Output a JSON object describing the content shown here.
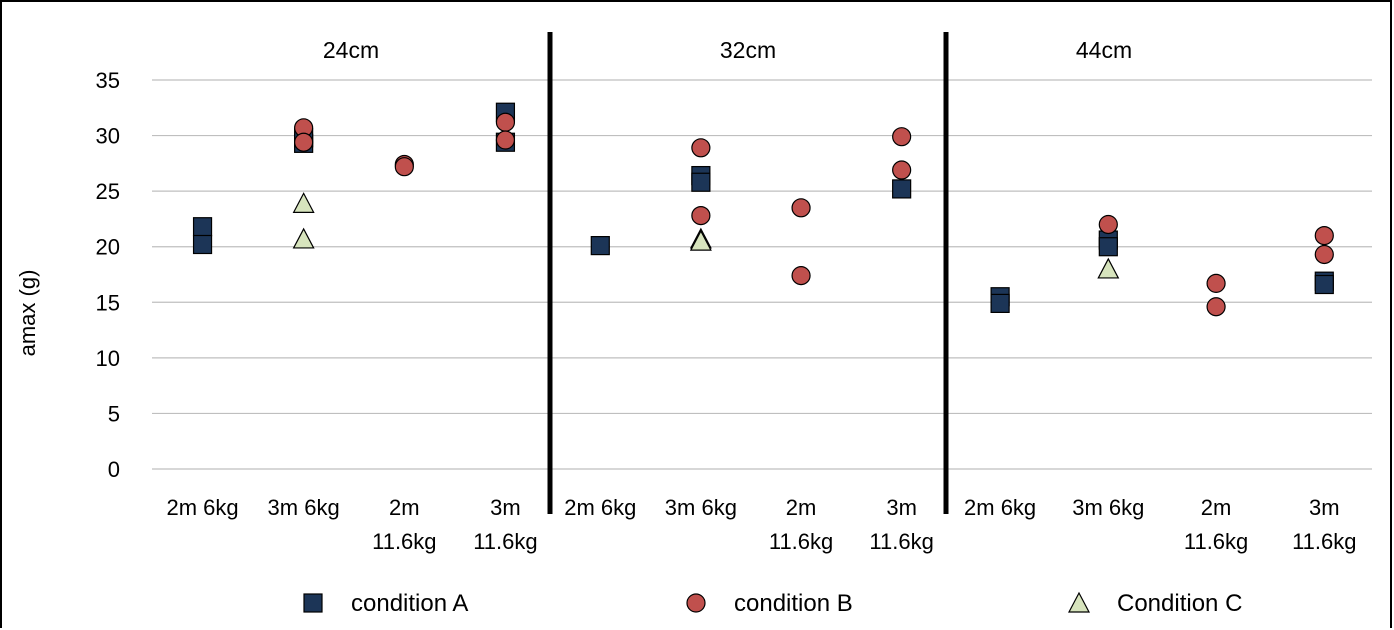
{
  "chart_data": {
    "type": "scatter",
    "ylabel": "amax (g)",
    "ylim": [
      0,
      35
    ],
    "yticks": [
      0,
      5,
      10,
      15,
      20,
      25,
      30,
      35
    ],
    "grid": true,
    "legend_position": "bottom",
    "colors": {
      "condition_a": "#1c3557",
      "condition_b": "#c0504d",
      "condition_c": "#d7e4bd",
      "grid": "#bfbfbf",
      "divider": "#000000"
    },
    "categories": [
      [
        "2m 6kg"
      ],
      [
        "3m 6kg"
      ],
      [
        "2m",
        "11.6kg"
      ],
      [
        "3m",
        "11.6kg"
      ]
    ],
    "panels": [
      {
        "title": "24cm",
        "series": [
          {
            "name": "condition A",
            "marker": "square",
            "points": [
              [
                0,
                21.8
              ],
              [
                0,
                20.2
              ],
              [
                1,
                29.3
              ],
              [
                1,
                29.8
              ],
              [
                3,
                32.1
              ],
              [
                3,
                29.4
              ]
            ]
          },
          {
            "name": "condition B",
            "marker": "circle",
            "points": [
              [
                1,
                30.7
              ],
              [
                1,
                29.4
              ],
              [
                2,
                27.4
              ],
              [
                2,
                27.2
              ],
              [
                3,
                31.2
              ],
              [
                3,
                29.6
              ]
            ]
          },
          {
            "name": "Condition C",
            "marker": "triangle",
            "points": [
              [
                1,
                23.9
              ],
              [
                1,
                20.7
              ]
            ]
          }
        ]
      },
      {
        "title": "32cm",
        "series": [
          {
            "name": "condition A",
            "marker": "square",
            "points": [
              [
                0,
                20.1
              ],
              [
                1,
                26.4
              ],
              [
                1,
                25.8
              ],
              [
                3,
                25.2
              ]
            ]
          },
          {
            "name": "condition B",
            "marker": "circle",
            "points": [
              [
                1,
                28.9
              ],
              [
                1,
                22.8
              ],
              [
                2,
                23.5
              ],
              [
                2,
                17.4
              ],
              [
                3,
                29.9
              ],
              [
                3,
                26.9
              ]
            ]
          },
          {
            "name": "Condition C",
            "marker": "triangle",
            "points": [
              [
                1,
                20.7
              ],
              [
                1,
                20.5
              ]
            ]
          }
        ]
      },
      {
        "title": "44cm",
        "series": [
          {
            "name": "condition A",
            "marker": "square",
            "points": [
              [
                0,
                15.5
              ],
              [
                0,
                14.9
              ],
              [
                1,
                20.6
              ],
              [
                1,
                20.0
              ],
              [
                3,
                16.9
              ],
              [
                3,
                16.6
              ]
            ]
          },
          {
            "name": "condition B",
            "marker": "circle",
            "points": [
              [
                1,
                22.0
              ],
              [
                2,
                16.7
              ],
              [
                2,
                14.6
              ],
              [
                3,
                21.0
              ],
              [
                3,
                19.3
              ]
            ]
          },
          {
            "name": "Condition C",
            "marker": "triangle",
            "points": [
              [
                1,
                18.0
              ]
            ]
          }
        ]
      }
    ],
    "legend": [
      {
        "label": "condition A",
        "marker": "square"
      },
      {
        "label": "condition B",
        "marker": "circle"
      },
      {
        "label": "Condition C",
        "marker": "triangle"
      }
    ]
  }
}
